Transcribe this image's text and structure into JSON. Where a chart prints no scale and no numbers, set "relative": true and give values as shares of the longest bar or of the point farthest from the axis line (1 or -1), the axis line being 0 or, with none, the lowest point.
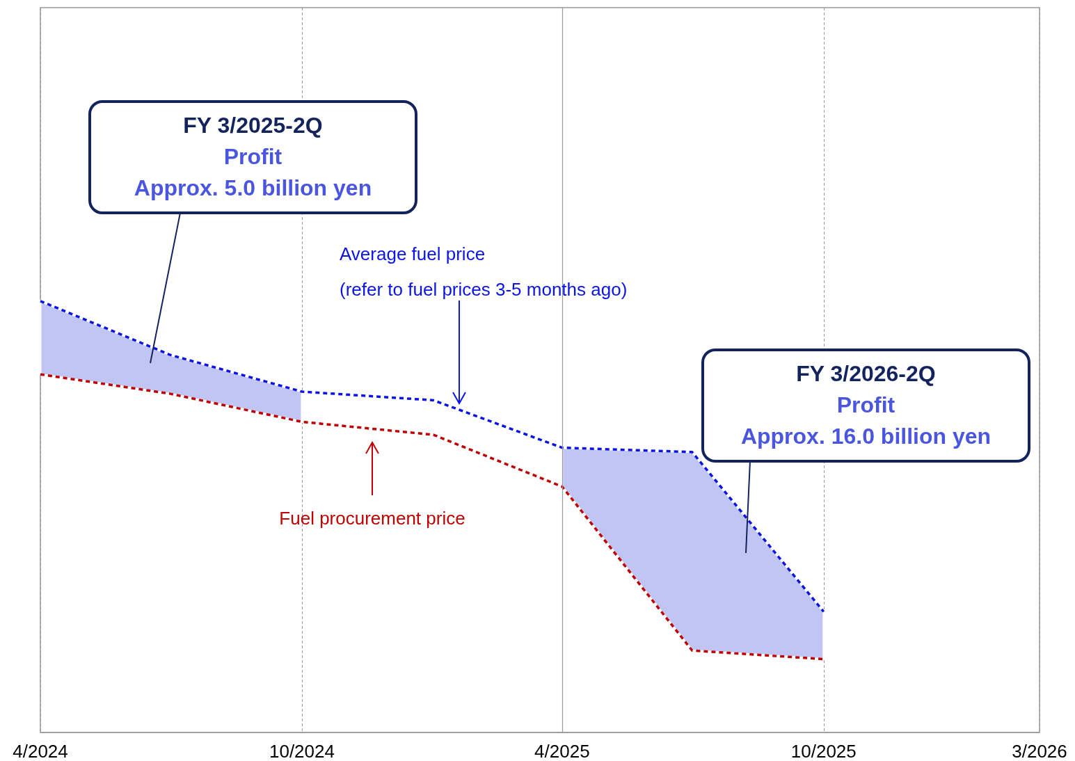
{
  "chart_data": {
    "type": "line",
    "relative": true,
    "line_style": "dashed",
    "marker": "none",
    "grid": "x",
    "x": [
      "2024-04",
      "2024-07",
      "2024-10",
      "2025-01",
      "2025-04",
      "2025-07",
      "2025-10"
    ],
    "xlim": [
      "2024-04",
      "2026-03"
    ],
    "xticks": [
      {
        "value": "2024-04",
        "label": "4/2024"
      },
      {
        "value": "2024-10",
        "label": "10/2024"
      },
      {
        "value": "2025-04",
        "label": "4/2025"
      },
      {
        "value": "2025-10",
        "label": "10/2025"
      },
      {
        "value": "2026-03",
        "label": "3/2026"
      }
    ],
    "series": [
      {
        "color": "#0a14e6",
        "values": [
          1.0,
          0.875,
          0.79,
          0.77,
          0.66,
          0.65,
          0.28
        ],
        "lower": [
          0.83,
          0.785,
          0.72,
          null,
          0.57,
          0.19,
          0.17
        ],
        "upper": [
          1.0,
          0.875,
          0.79,
          null,
          0.66,
          0.65,
          0.28
        ]
      },
      {
        "color": "#c00000",
        "values": [
          0.83,
          0.785,
          0.72,
          0.69,
          0.57,
          0.19,
          0.17
        ]
      }
    ],
    "ref_lines": [
      {
        "axis": "x",
        "value": "2025-04",
        "label": null,
        "color": "#999999",
        "line_style": "solid"
      }
    ],
    "annotations": [
      "FY 3/2025-2Q\nProfit\nApprox. 5.0 billion yen",
      "FY 3/2026-2Q\nProfit\nApprox. 16.0 billion yen",
      "Average fuel price\n(refer to fuel prices 3-5 months ago)",
      "Fuel procurement price"
    ]
  }
}
